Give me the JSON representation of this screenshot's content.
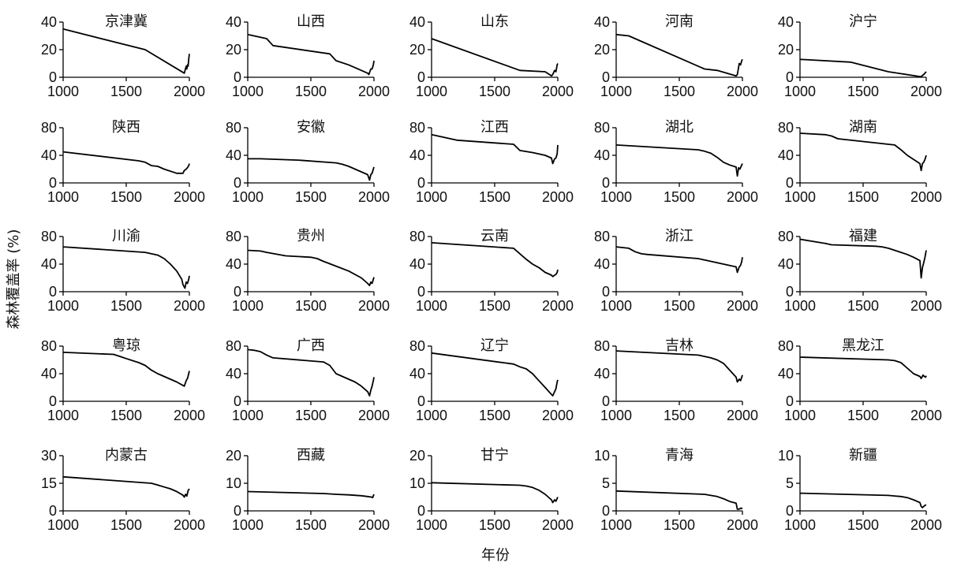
{
  "chart_data": {
    "type": "line",
    "xlabel": "年份",
    "ylabel": "森林覆盖率 (%)",
    "xlim": [
      1000,
      2000
    ],
    "xticks": [
      1000,
      1500,
      2000
    ],
    "grid": false,
    "legend": "none",
    "panels": [
      {
        "title": "京津冀",
        "ylim": [
          0,
          40
        ],
        "yticks": [
          0,
          20,
          40
        ],
        "x": [
          1000,
          1650,
          1960,
          1975,
          1980,
          1985,
          1990,
          1995,
          2000
        ],
        "y": [
          35,
          20,
          3,
          8,
          6,
          9,
          8,
          13,
          17
        ]
      },
      {
        "title": "山西",
        "ylim": [
          0,
          40
        ],
        "yticks": [
          0,
          20,
          40
        ],
        "x": [
          1000,
          1100,
          1150,
          1200,
          1650,
          1700,
          1800,
          1950,
          1960,
          1975,
          1985,
          1995,
          2000
        ],
        "y": [
          31,
          29,
          28,
          23,
          17,
          12,
          9,
          3,
          2,
          6,
          6,
          9,
          12
        ]
      },
      {
        "title": "山东",
        "ylim": [
          0,
          40
        ],
        "yticks": [
          0,
          20,
          40
        ],
        "x": [
          1000,
          1700,
          1900,
          1950,
          1960,
          1975,
          1985,
          1995,
          2000
        ],
        "y": [
          28,
          5,
          4,
          1,
          2,
          5,
          4,
          9,
          10
        ]
      },
      {
        "title": "河南",
        "ylim": [
          0,
          40
        ],
        "yticks": [
          0,
          20,
          40
        ],
        "x": [
          1000,
          1100,
          1150,
          1700,
          1800,
          1950,
          1960,
          1975,
          1985,
          1995,
          2000
        ],
        "y": [
          31,
          30,
          28,
          6,
          5,
          1,
          2,
          10,
          9,
          12,
          13
        ]
      },
      {
        "title": "沪宁",
        "ylim": [
          0,
          40
        ],
        "yticks": [
          0,
          20,
          40
        ],
        "x": [
          1000,
          1400,
          1700,
          1950,
          1960,
          1980,
          1990,
          2000
        ],
        "y": [
          13,
          11,
          4,
          0.5,
          0.5,
          2,
          3,
          4
        ]
      },
      {
        "title": "陕西",
        "ylim": [
          0,
          80
        ],
        "yticks": [
          0,
          40,
          80
        ],
        "x": [
          1000,
          1600,
          1650,
          1700,
          1750,
          1800,
          1900,
          1950,
          1960,
          1975,
          1985,
          1995,
          2000
        ],
        "y": [
          45,
          32,
          30,
          25,
          24,
          20,
          14,
          14,
          18,
          20,
          22,
          25,
          28
        ]
      },
      {
        "title": "安徽",
        "ylim": [
          0,
          80
        ],
        "yticks": [
          0,
          40,
          80
        ],
        "x": [
          1000,
          1100,
          1400,
          1700,
          1750,
          1800,
          1900,
          1950,
          1965,
          1975,
          1985,
          1995,
          2000
        ],
        "y": [
          35,
          35,
          33,
          29,
          27,
          24,
          16,
          12,
          4,
          12,
          14,
          20,
          23
        ]
      },
      {
        "title": "江西",
        "ylim": [
          0,
          80
        ],
        "yticks": [
          0,
          40,
          80
        ],
        "x": [
          1000,
          1050,
          1100,
          1200,
          1650,
          1700,
          1800,
          1900,
          1950,
          1960,
          1975,
          1985,
          1995,
          2000
        ],
        "y": [
          70,
          68,
          66,
          62,
          56,
          47,
          44,
          40,
          36,
          28,
          35,
          36,
          42,
          55
        ]
      },
      {
        "title": "湖北",
        "ylim": [
          0,
          80
        ],
        "yticks": [
          0,
          40,
          80
        ],
        "x": [
          1000,
          1650,
          1700,
          1750,
          1800,
          1850,
          1900,
          1950,
          1960,
          1970,
          1980,
          1990,
          2000
        ],
        "y": [
          55,
          48,
          46,
          43,
          37,
          30,
          26,
          23,
          10,
          22,
          20,
          24,
          28
        ]
      },
      {
        "title": "湖南",
        "ylim": [
          0,
          80
        ],
        "yticks": [
          0,
          40,
          80
        ],
        "x": [
          1000,
          1200,
          1250,
          1300,
          1750,
          1800,
          1850,
          1900,
          1950,
          1960,
          1970,
          1980,
          1990,
          2000
        ],
        "y": [
          72,
          70,
          68,
          64,
          55,
          48,
          40,
          34,
          28,
          18,
          28,
          30,
          34,
          40
        ]
      },
      {
        "title": "川渝",
        "ylim": [
          0,
          80
        ],
        "yticks": [
          0,
          40,
          80
        ],
        "x": [
          1000,
          1650,
          1700,
          1750,
          1800,
          1850,
          1900,
          1940,
          1950,
          1965,
          1975,
          1985,
          1995,
          2000
        ],
        "y": [
          65,
          57,
          55,
          53,
          48,
          40,
          30,
          18,
          10,
          5,
          14,
          12,
          18,
          23
        ]
      },
      {
        "title": "贵州",
        "ylim": [
          0,
          80
        ],
        "yticks": [
          0,
          40,
          80
        ],
        "x": [
          1000,
          1100,
          1150,
          1300,
          1500,
          1550,
          1600,
          1700,
          1800,
          1900,
          1950,
          1965,
          1975,
          1985,
          1995,
          2000
        ],
        "y": [
          60,
          59,
          57,
          52,
          50,
          48,
          44,
          37,
          30,
          20,
          12,
          9,
          14,
          12,
          18,
          21
        ]
      },
      {
        "title": "云南",
        "ylim": [
          0,
          80
        ],
        "yticks": [
          0,
          40,
          80
        ],
        "x": [
          1000,
          1650,
          1700,
          1750,
          1800,
          1850,
          1900,
          1950,
          1960,
          1975,
          1985,
          1995,
          2000
        ],
        "y": [
          71,
          63,
          55,
          47,
          40,
          35,
          28,
          24,
          22,
          24,
          25,
          28,
          32
        ]
      },
      {
        "title": "浙江",
        "ylim": [
          0,
          80
        ],
        "yticks": [
          0,
          40,
          80
        ],
        "x": [
          1000,
          1100,
          1150,
          1200,
          1250,
          1650,
          1700,
          1800,
          1900,
          1950,
          1960,
          1975,
          1985,
          1995,
          2000
        ],
        "y": [
          65,
          63,
          58,
          55,
          54,
          48,
          46,
          42,
          38,
          36,
          28,
          36,
          38,
          44,
          50
        ]
      },
      {
        "title": "福建",
        "ylim": [
          0,
          80
        ],
        "yticks": [
          0,
          40,
          80
        ],
        "x": [
          1000,
          1100,
          1200,
          1250,
          1600,
          1650,
          1700,
          1750,
          1800,
          1850,
          1900,
          1950,
          1960,
          1970,
          1980,
          1990,
          2000
        ],
        "y": [
          76,
          73,
          70,
          68,
          66,
          65,
          63,
          60,
          57,
          54,
          50,
          45,
          20,
          35,
          42,
          50,
          60
        ]
      },
      {
        "title": "粤琼",
        "ylim": [
          0,
          80
        ],
        "yticks": [
          0,
          40,
          80
        ],
        "x": [
          1000,
          1400,
          1450,
          1500,
          1600,
          1650,
          1700,
          1750,
          1800,
          1850,
          1900,
          1950,
          1960,
          1975,
          1985,
          1995,
          2000
        ],
        "y": [
          71,
          68,
          65,
          62,
          56,
          52,
          45,
          40,
          36,
          32,
          28,
          23,
          22,
          30,
          33,
          40,
          44
        ]
      },
      {
        "title": "广西",
        "ylim": [
          0,
          80
        ],
        "yticks": [
          0,
          40,
          80
        ],
        "x": [
          1000,
          1050,
          1100,
          1150,
          1200,
          1600,
          1650,
          1700,
          1800,
          1850,
          1900,
          1950,
          1965,
          1975,
          1985,
          1995,
          2000
        ],
        "y": [
          75,
          74,
          72,
          67,
          63,
          57,
          52,
          40,
          32,
          28,
          22,
          14,
          8,
          16,
          22,
          30,
          35
        ]
      },
      {
        "title": "辽宁",
        "ylim": [
          0,
          80
        ],
        "yticks": [
          0,
          40,
          80
        ],
        "x": [
          1000,
          1650,
          1700,
          1750,
          1800,
          1850,
          1900,
          1950,
          1960,
          1975,
          1985,
          1995,
          2000
        ],
        "y": [
          70,
          54,
          50,
          47,
          40,
          30,
          20,
          10,
          8,
          14,
          18,
          28,
          31
        ]
      },
      {
        "title": "吉林",
        "ylim": [
          0,
          80
        ],
        "yticks": [
          0,
          40,
          80
        ],
        "x": [
          1000,
          1650,
          1700,
          1750,
          1800,
          1850,
          1900,
          1950,
          1960,
          1975,
          1985,
          1995,
          2000
        ],
        "y": [
          73,
          67,
          65,
          63,
          60,
          55,
          45,
          35,
          28,
          32,
          30,
          35,
          38
        ]
      },
      {
        "title": "黑龙江",
        "ylim": [
          0,
          80
        ],
        "yticks": [
          0,
          40,
          80
        ],
        "x": [
          1000,
          1700,
          1750,
          1800,
          1850,
          1900,
          1950,
          1960,
          1975,
          1985,
          1995,
          2000
        ],
        "y": [
          64,
          60,
          59,
          56,
          48,
          40,
          36,
          33,
          38,
          36,
          35,
          37
        ]
      },
      {
        "title": "内蒙古",
        "ylim": [
          0,
          30
        ],
        "yticks": [
          0,
          15,
          30
        ],
        "x": [
          1000,
          1700,
          1750,
          1800,
          1850,
          1900,
          1950,
          1960,
          1970,
          1980,
          1990,
          2000
        ],
        "y": [
          18.5,
          15,
          14,
          13,
          12,
          10.5,
          8.5,
          7.5,
          9,
          8,
          11,
          12
        ]
      },
      {
        "title": "西藏",
        "ylim": [
          0,
          20
        ],
        "yticks": [
          0,
          10,
          20
        ],
        "x": [
          1000,
          1600,
          1700,
          1800,
          1900,
          1950,
          1980,
          1990,
          1995,
          2000
        ],
        "y": [
          7,
          6.3,
          6,
          5.8,
          5.5,
          5.2,
          5,
          4.8,
          5.5,
          6
        ]
      },
      {
        "title": "甘宁",
        "ylim": [
          0,
          20
        ],
        "yticks": [
          0,
          10,
          20
        ],
        "x": [
          1000,
          1700,
          1750,
          1800,
          1850,
          1900,
          1950,
          1960,
          1975,
          1985,
          1995,
          2000
        ],
        "y": [
          10.2,
          9.3,
          9,
          8.5,
          7.5,
          6,
          4,
          3,
          4,
          3.5,
          4.5,
          5
        ]
      },
      {
        "title": "青海",
        "ylim": [
          0,
          10
        ],
        "yticks": [
          0,
          5,
          10
        ],
        "x": [
          1000,
          1700,
          1750,
          1800,
          1850,
          1900,
          1950,
          1960,
          1970,
          1980,
          1990,
          2000
        ],
        "y": [
          3.6,
          3,
          2.8,
          2.6,
          2.2,
          1.7,
          1.4,
          0.3,
          0.3,
          0.4,
          0.5,
          0.4
        ]
      },
      {
        "title": "新疆",
        "ylim": [
          0,
          10
        ],
        "yticks": [
          0,
          5,
          10
        ],
        "x": [
          1000,
          1700,
          1750,
          1800,
          1850,
          1900,
          1950,
          1960,
          1970,
          1980,
          1990,
          2000
        ],
        "y": [
          3.2,
          2.8,
          2.7,
          2.6,
          2.4,
          2,
          1.5,
          0.8,
          0.6,
          0.8,
          1,
          1.1
        ]
      }
    ]
  }
}
